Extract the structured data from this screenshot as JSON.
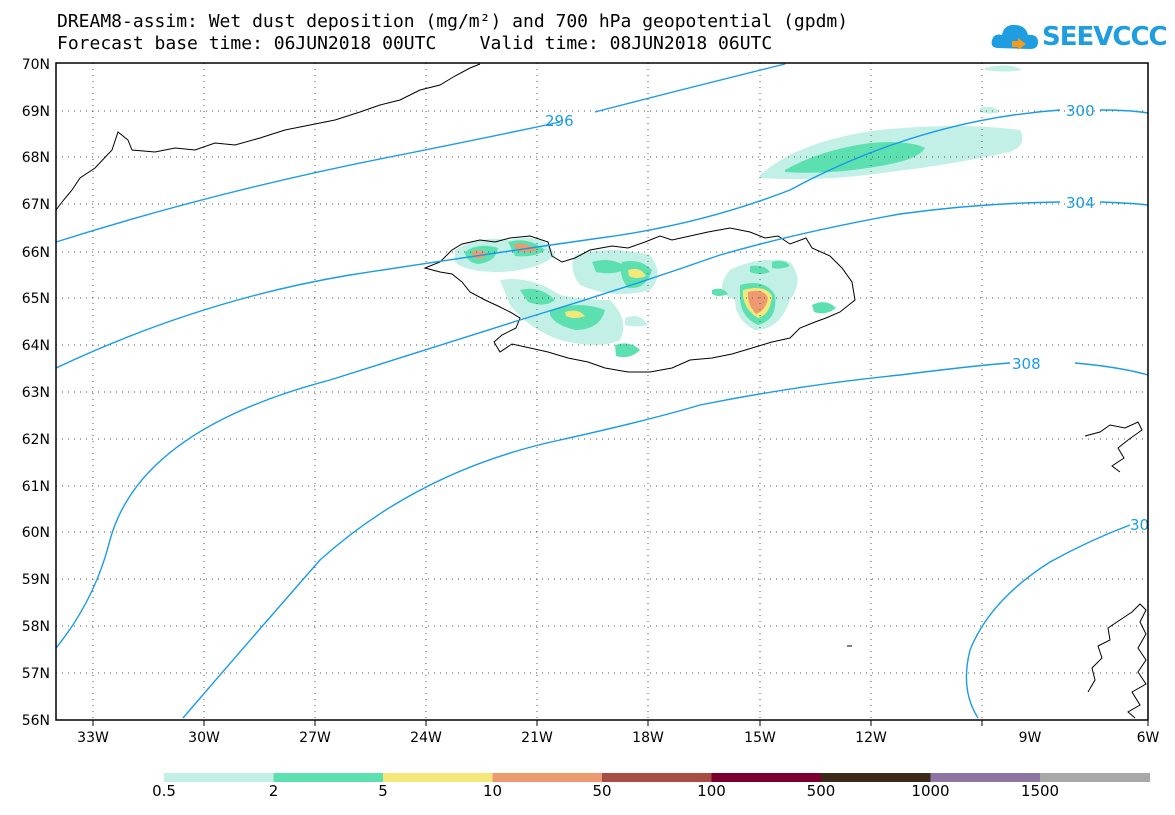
{
  "title_line1": "DREAM8-assim: Wet dust deposition (mg/m²) and 700 hPa geopotential (gpdm)",
  "title_line2": "Forecast base time: 06JUN2018 00UTC    Valid time: 08JUN2018 06UTC",
  "logo_text": "SEEVCCC",
  "lat_labels": [
    "70N",
    "69N",
    "68N",
    "67N",
    "66N",
    "65N",
    "64N",
    "63N",
    "62N",
    "61N",
    "60N",
    "59N",
    "58N",
    "57N",
    "56N"
  ],
  "lon_labels": [
    "33W",
    "30W",
    "27W",
    "24W",
    "21W",
    "18W",
    "15W",
    "12W",
    "9W",
    "6W"
  ],
  "contour_labels": [
    "296",
    "300",
    "304",
    "308",
    "30"
  ],
  "colorbar": {
    "colors": [
      "#c2f0e6",
      "#5ce0b0",
      "#f5e87a",
      "#ee9a70",
      "#a64e46",
      "#7b0030",
      "#3b2a1a",
      "#8e74a3",
      "#a8a8a8"
    ],
    "labels": [
      "0.5",
      "2",
      "5",
      "10",
      "50",
      "100",
      "500",
      "1000",
      "1500"
    ]
  },
  "contour_color": "#1a9be6"
}
